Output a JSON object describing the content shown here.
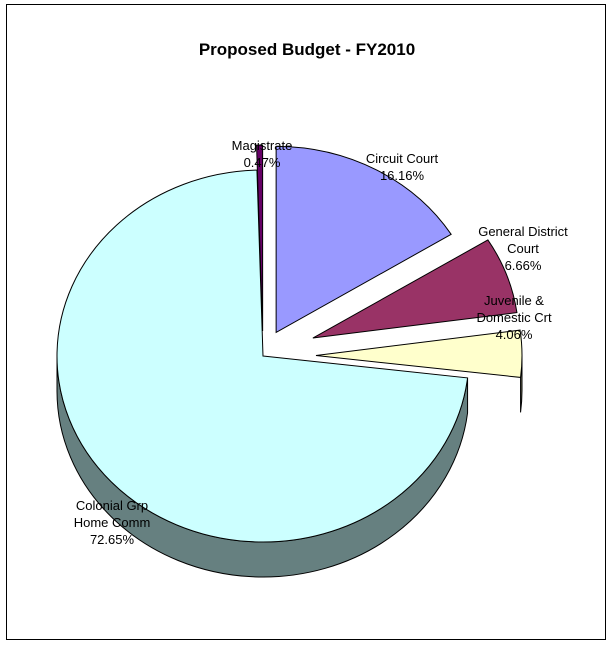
{
  "chart_data": {
    "type": "pie",
    "title": "Proposed Budget - FY2010",
    "slices": [
      {
        "label": [
          "Circuit Court"
        ],
        "percent": "16.16%",
        "value": 16.16,
        "color": "#9999ff",
        "side": "#4d4d99"
      },
      {
        "label": [
          "General District",
          "Court"
        ],
        "percent": "6.66%",
        "value": 6.66,
        "color": "#993366",
        "side": "#4d1a33"
      },
      {
        "label": [
          "Juvenile &",
          "Domestic Crt"
        ],
        "percent": "4.06%",
        "value": 4.06,
        "color": "#ffffcc",
        "side": "#808066"
      },
      {
        "label": [
          "Colonial Grp",
          "Home Comm"
        ],
        "percent": "72.65%",
        "value": 72.65,
        "color": "#ccffff",
        "side": "#668080"
      },
      {
        "label": [
          "Magistrate"
        ],
        "percent": "0.47%",
        "value": 0.47,
        "color": "#660066",
        "side": "#330033"
      }
    ],
    "legend": "none",
    "exploded": true,
    "three_d": true
  }
}
